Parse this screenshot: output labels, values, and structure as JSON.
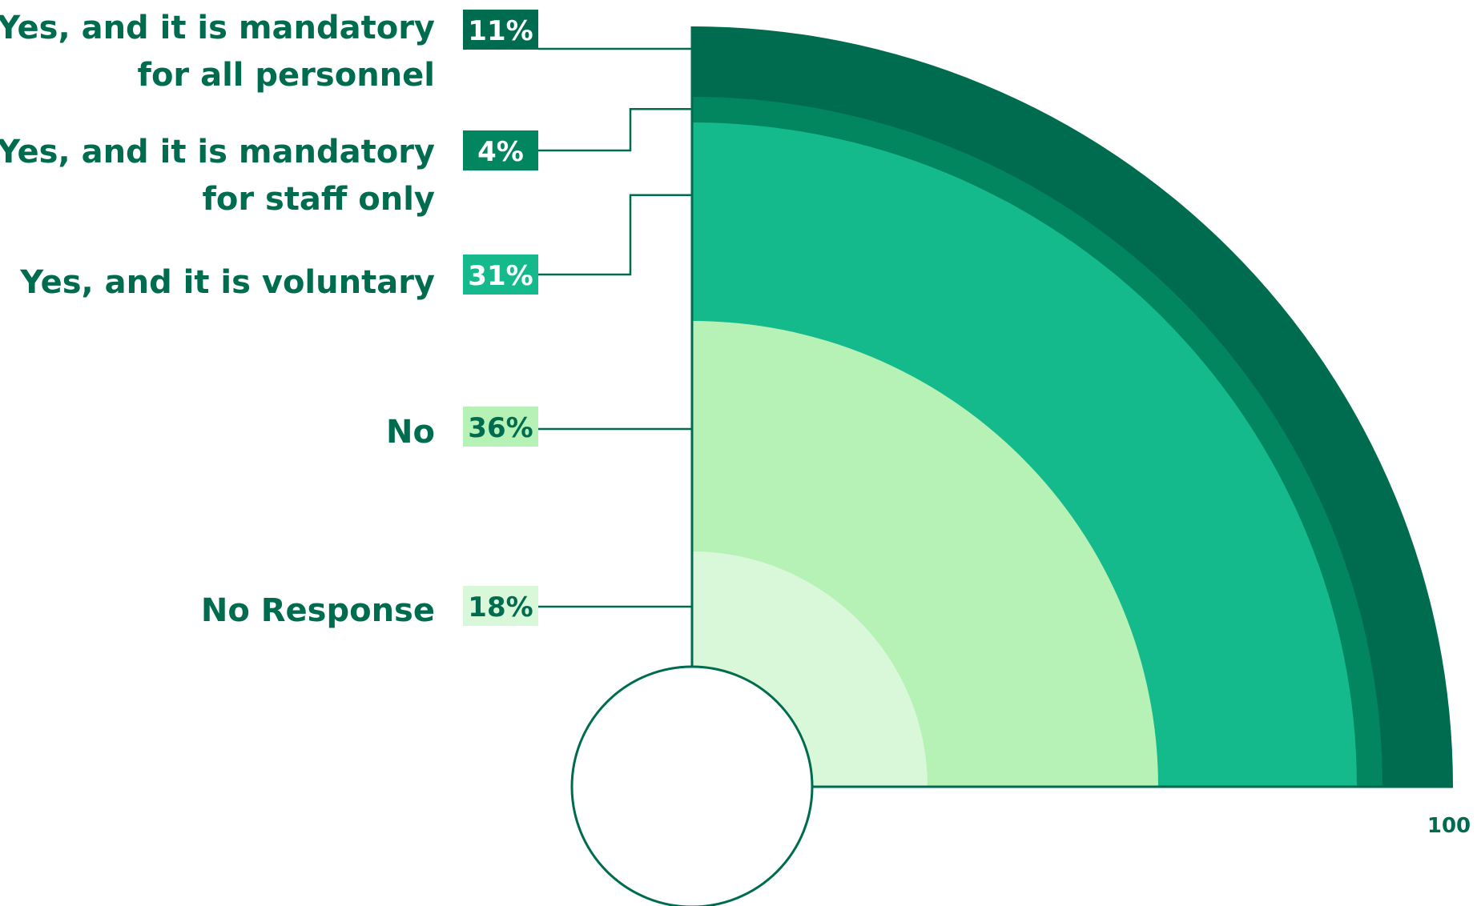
{
  "chart_data": {
    "type": "radial-stacked-area",
    "scale_max_label": "100",
    "series": [
      {
        "label_lines": [
          "Yes, and it is mandatory",
          "for all personnel"
        ],
        "value": 11,
        "value_label": "11%",
        "color": "#006c4f",
        "label_color": "#ffffff"
      },
      {
        "label_lines": [
          "Yes, and it is mandatory",
          "for staff only"
        ],
        "value": 4,
        "value_label": "4%",
        "color": "#01865f",
        "label_color": "#ffffff"
      },
      {
        "label_lines": [
          "Yes, and it is voluntary"
        ],
        "value": 31,
        "value_label": "31%",
        "color": "#14b98c",
        "label_color": "#ffffff"
      },
      {
        "label_lines": [
          "No"
        ],
        "value": 36,
        "value_label": "36%",
        "color": "#b6f1b6",
        "label_color": "#006c4f"
      },
      {
        "label_lines": [
          "No Response"
        ],
        "value": 18,
        "value_label": "18%",
        "color": "#d9f7d9",
        "label_color": "#006c4f"
      }
    ],
    "text_color": "#006c4f",
    "line_color": "#006c4f"
  }
}
